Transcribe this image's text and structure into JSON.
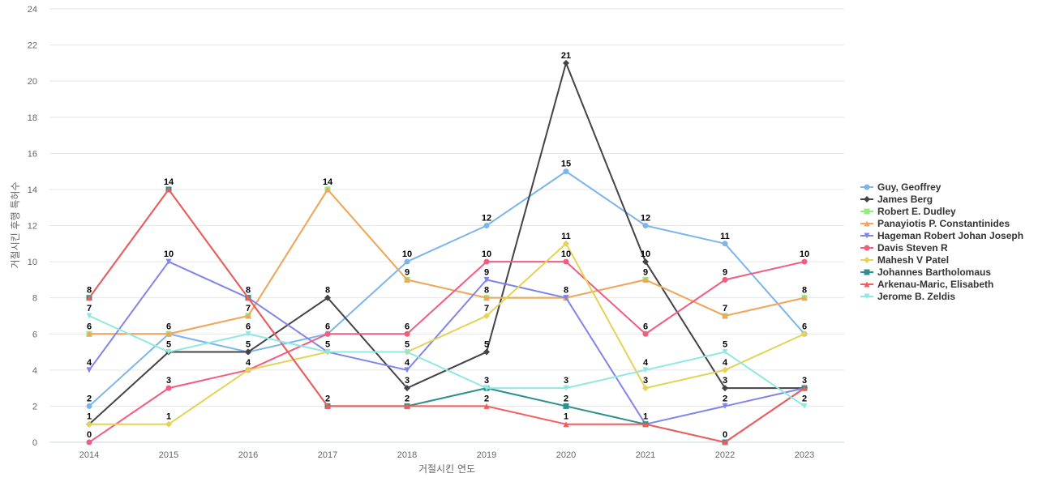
{
  "chart_data": {
    "type": "line",
    "title": "",
    "xlabel": "거절시킨 연도",
    "ylabel": "거절시킨 후행 특허수",
    "ylim": [
      0,
      24
    ],
    "yticks": [
      0,
      2,
      4,
      6,
      8,
      10,
      12,
      14,
      16,
      18,
      20,
      22,
      24
    ],
    "grid": true,
    "legend_position": "right",
    "x": [
      "2014",
      "2015",
      "2016",
      "2017",
      "2018",
      "2019",
      "2020",
      "2021",
      "2022",
      "2023"
    ],
    "series": [
      {
        "name": "Guy, Geoffrey",
        "color": "#7cb5ec",
        "marker": "circle",
        "values": [
          2,
          6,
          5,
          6,
          10,
          12,
          15,
          12,
          11,
          6
        ]
      },
      {
        "name": "James Berg",
        "color": "#434348",
        "marker": "diamond",
        "values": [
          1,
          5,
          5,
          8,
          3,
          5,
          21,
          10,
          3,
          3
        ]
      },
      {
        "name": "Robert E. Dudley",
        "color": "#90ed7d",
        "marker": "square",
        "values": [
          6,
          6,
          7,
          14,
          9,
          8,
          8,
          9,
          7,
          8
        ]
      },
      {
        "name": "Panayiotis P. Constantinides",
        "color": "#f7a35c",
        "marker": "triangle",
        "values": [
          6,
          6,
          7,
          14,
          9,
          8,
          8,
          9,
          7,
          8
        ]
      },
      {
        "name": "Hageman Robert Johan Joseph",
        "color": "#8085e9",
        "marker": "triangle-down",
        "values": [
          4,
          10,
          8,
          5,
          4,
          9,
          8,
          1,
          2,
          3
        ]
      },
      {
        "name": "Davis Steven R",
        "color": "#f15c80",
        "marker": "circle",
        "values": [
          0,
          3,
          4,
          6,
          6,
          10,
          10,
          6,
          9,
          10
        ]
      },
      {
        "name": "Mahesh V Patel",
        "color": "#e4d354",
        "marker": "diamond",
        "values": [
          1,
          1,
          4,
          5,
          5,
          7,
          11,
          3,
          4,
          6
        ]
      },
      {
        "name": "Johannes Bartholomaus",
        "color": "#2b908f",
        "marker": "square",
        "values": [
          8,
          14,
          8,
          2,
          2,
          3,
          2,
          1,
          0,
          3
        ]
      },
      {
        "name": "Arkenau-Maric, Elisabeth",
        "color": "#f45b5b",
        "marker": "triangle",
        "values": [
          8,
          14,
          8,
          2,
          2,
          2,
          1,
          1,
          0,
          3
        ]
      },
      {
        "name": "Jerome B. Zeldis",
        "color": "#91e8e1",
        "marker": "triangle-down",
        "values": [
          7,
          5,
          6,
          5,
          5,
          3,
          3,
          4,
          5,
          2
        ]
      }
    ],
    "data_labels": [
      {
        "x": "2014",
        "values": [
          8,
          6,
          7,
          4,
          2,
          1,
          0
        ]
      },
      {
        "x": "2015",
        "values": [
          14,
          10,
          6,
          5,
          3,
          1
        ]
      },
      {
        "x": "2016",
        "values": [
          8,
          7,
          6,
          5,
          4
        ]
      },
      {
        "x": "2017",
        "values": [
          14,
          8,
          6,
          5,
          2
        ]
      },
      {
        "x": "2018",
        "values": [
          10,
          9,
          6,
          5,
          4,
          3,
          2
        ]
      },
      {
        "x": "2019",
        "values": [
          12,
          10,
          9,
          8,
          7,
          5,
          3,
          2
        ]
      },
      {
        "x": "2020",
        "values": [
          21,
          15,
          11,
          10,
          8,
          3,
          2,
          1
        ]
      },
      {
        "x": "2021",
        "values": [
          12,
          10,
          9,
          6,
          4,
          3,
          1
        ]
      },
      {
        "x": "2022",
        "values": [
          11,
          9,
          7,
          5,
          4,
          3,
          2,
          0
        ]
      },
      {
        "x": "2023",
        "values": [
          10,
          8,
          6,
          3,
          2
        ]
      }
    ]
  }
}
